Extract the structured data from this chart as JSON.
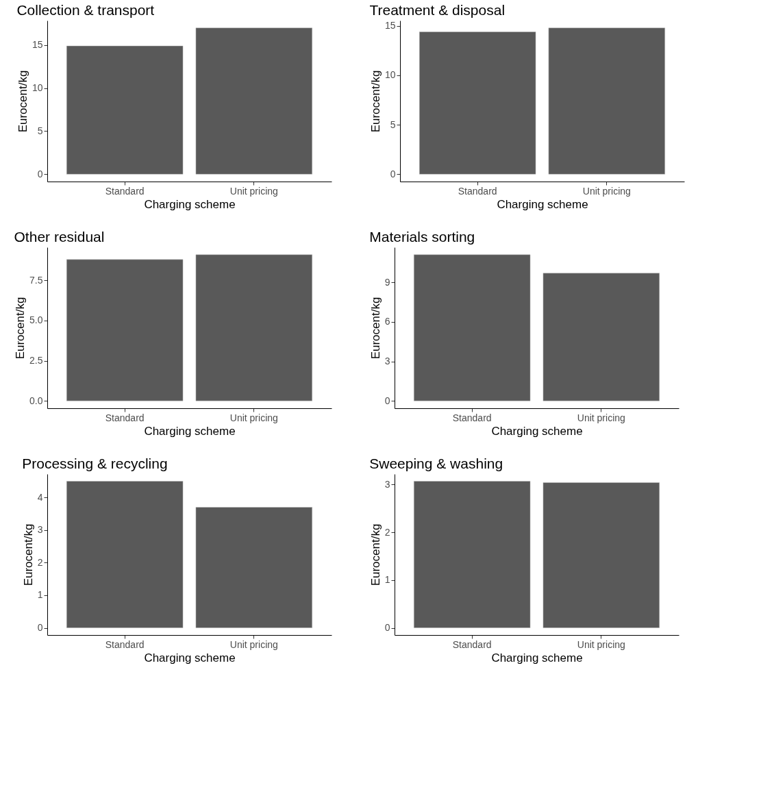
{
  "chart_data": [
    {
      "type": "bar",
      "title": "Collection & transport",
      "xlabel": "Charging scheme",
      "ylabel": "Eurocent/kg",
      "categories": [
        "Standard",
        "Unit pricing"
      ],
      "values": [
        14.9,
        17.0
      ],
      "color": "#595959",
      "ylim": [
        -0.85,
        17.85
      ],
      "yticks": [
        0,
        5,
        10,
        15
      ],
      "grid": false
    },
    {
      "type": "bar",
      "title": "Treatment & disposal",
      "xlabel": "Charging scheme",
      "ylabel": "Eurocent/kg",
      "categories": [
        "Standard",
        "Unit pricing"
      ],
      "values": [
        14.4,
        14.8
      ],
      "color": "#595959",
      "ylim": [
        -0.74,
        15.54
      ],
      "yticks": [
        0,
        5,
        10,
        15
      ],
      "grid": false
    },
    {
      "type": "bar",
      "title": "Other residual",
      "xlabel": "Charging scheme",
      "ylabel": "Eurocent/kg",
      "categories": [
        "Standard",
        "Unit pricing"
      ],
      "values": [
        8.8,
        9.1
      ],
      "color": "#595959",
      "ylim": [
        -0.46,
        9.56
      ],
      "yticks": [
        {
          "value": 0,
          "label": "0.0"
        },
        2.5,
        {
          "value": 5,
          "label": "5.0"
        },
        7.5
      ],
      "grid": false
    },
    {
      "type": "bar",
      "title": "Materials sorting",
      "xlabel": "Charging scheme",
      "ylabel": "Eurocent/kg",
      "categories": [
        "Standard",
        "Unit pricing"
      ],
      "values": [
        11.1,
        9.7
      ],
      "color": "#595959",
      "ylim": [
        -0.56,
        11.66
      ],
      "yticks": [
        0,
        3,
        6,
        9
      ],
      "grid": false
    },
    {
      "type": "bar",
      "title": "Processing & recycling",
      "xlabel": "Charging scheme",
      "ylabel": "Eurocent/kg",
      "categories": [
        "Standard",
        "Unit pricing"
      ],
      "values": [
        4.5,
        3.7
      ],
      "color": "#595959",
      "ylim": [
        -0.22,
        4.72
      ],
      "yticks": [
        0,
        1,
        2,
        3,
        4
      ],
      "grid": false
    },
    {
      "type": "bar",
      "title": "Sweeping & washing",
      "xlabel": "Charging scheme",
      "ylabel": "Eurocent/kg",
      "categories": [
        "Standard",
        "Unit pricing"
      ],
      "values": [
        3.07,
        3.04
      ],
      "color": "#595959",
      "ylim": [
        -0.15,
        3.22
      ],
      "yticks": [
        0,
        1,
        2,
        3
      ],
      "grid": false
    }
  ]
}
